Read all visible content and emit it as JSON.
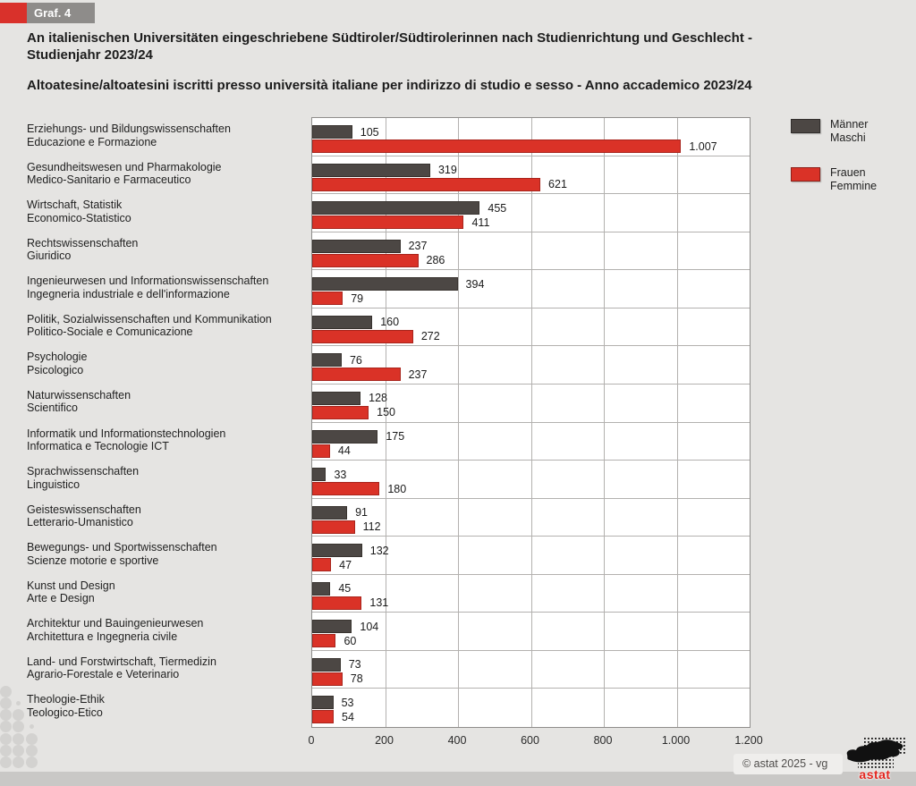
{
  "badge": {
    "label": "Graf. 4"
  },
  "titles": {
    "german": "An italienischen Universitäten eingeschriebene Südtiroler/Südtirolerinnen nach Studienrichtung und Geschlecht -\nStudienjahr 2023/24",
    "italian": "Altoatesine/altoatesini iscritti presso università italiane per indirizzo di studio e sesso - Anno accademico 2023/24"
  },
  "legend": {
    "male": {
      "label_de": "Männer",
      "label_it": "Maschi",
      "color": "#4c4744"
    },
    "female": {
      "label_de": "Frauen",
      "label_it": "Femmine",
      "color": "#da3227"
    }
  },
  "footer": {
    "copyright": "© astat 2025 - vg",
    "logo_text": "astat"
  },
  "chart_data": {
    "type": "bar",
    "orientation": "horizontal",
    "title": "An italienischen Universitäten eingeschriebene Südtiroler/Südtirolerinnen nach Studienrichtung und Geschlecht - Studienjahr 2023/24",
    "subtitle": "Altoatesine/altoatesini iscritti presso università italiane per indirizzo di studio e sesso - Anno accademico 2023/24",
    "xlim": [
      0,
      1200
    ],
    "x_tick_values": [
      0,
      200,
      400,
      600,
      800,
      1000,
      1200
    ],
    "x_tick_labels": [
      "0",
      "200",
      "400",
      "600",
      "800",
      "1.000",
      "1.200"
    ],
    "grid": true,
    "legend_position": "top-right",
    "categories": [
      {
        "label_de": "Erziehungs- und Bildungswissenschaften",
        "label_it": "Educazione e Formazione"
      },
      {
        "label_de": "Gesundheitswesen und Pharmakologie",
        "label_it": "Medico-Sanitario e Farmaceutico"
      },
      {
        "label_de": "Wirtschaft, Statistik",
        "label_it": "Economico-Statistico"
      },
      {
        "label_de": "Rechtswissenschaften",
        "label_it": "Giuridico"
      },
      {
        "label_de": "Ingenieurwesen und Informationswissenschaften",
        "label_it": "Ingegneria industriale e dell'informazione"
      },
      {
        "label_de": "Politik, Sozialwissenschaften und Kommunikation",
        "label_it": "Politico-Sociale e Comunicazione"
      },
      {
        "label_de": "Psychologie",
        "label_it": "Psicologico"
      },
      {
        "label_de": "Naturwissenschaften",
        "label_it": "Scientifico"
      },
      {
        "label_de": "Informatik und Informationstechnologien",
        "label_it": "Informatica e Tecnologie ICT"
      },
      {
        "label_de": "Sprachwissenschaften",
        "label_it": "Linguistico"
      },
      {
        "label_de": "Geisteswissenschaften",
        "label_it": "Letterario-Umanistico"
      },
      {
        "label_de": "Bewegungs- und Sportwissenschaften",
        "label_it": "Scienze motorie e sportive"
      },
      {
        "label_de": "Kunst und Design",
        "label_it": "Arte e Design"
      },
      {
        "label_de": "Architektur und Bauingenieurwesen",
        "label_it": "Architettura e Ingegneria civile"
      },
      {
        "label_de": "Land- und Forstwirtschaft, Tiermedizin",
        "label_it": "Agrario-Forestale e Veterinario"
      },
      {
        "label_de": "Theologie-Ethik",
        "label_it": "Teologico-Etico"
      }
    ],
    "series": [
      {
        "name_de": "Männer",
        "name_it": "Maschi",
        "color": "#4c4744",
        "values": [
          105,
          319,
          455,
          237,
          394,
          160,
          76,
          128,
          175,
          33,
          91,
          132,
          45,
          104,
          73,
          53
        ],
        "labels": [
          "105",
          "319",
          "455",
          "237",
          "394",
          "160",
          "76",
          "128",
          "175",
          "33",
          "91",
          "132",
          "45",
          "104",
          "73",
          "53"
        ]
      },
      {
        "name_de": "Frauen",
        "name_it": "Femmine",
        "color": "#da3227",
        "values": [
          1007,
          621,
          411,
          286,
          79,
          272,
          237,
          150,
          44,
          180,
          112,
          47,
          131,
          60,
          78,
          54
        ],
        "labels": [
          "1.007",
          "621",
          "411",
          "286",
          "79",
          "272",
          "237",
          "150",
          "44",
          "180",
          "112",
          "47",
          "131",
          "60",
          "78",
          "54"
        ]
      }
    ]
  }
}
